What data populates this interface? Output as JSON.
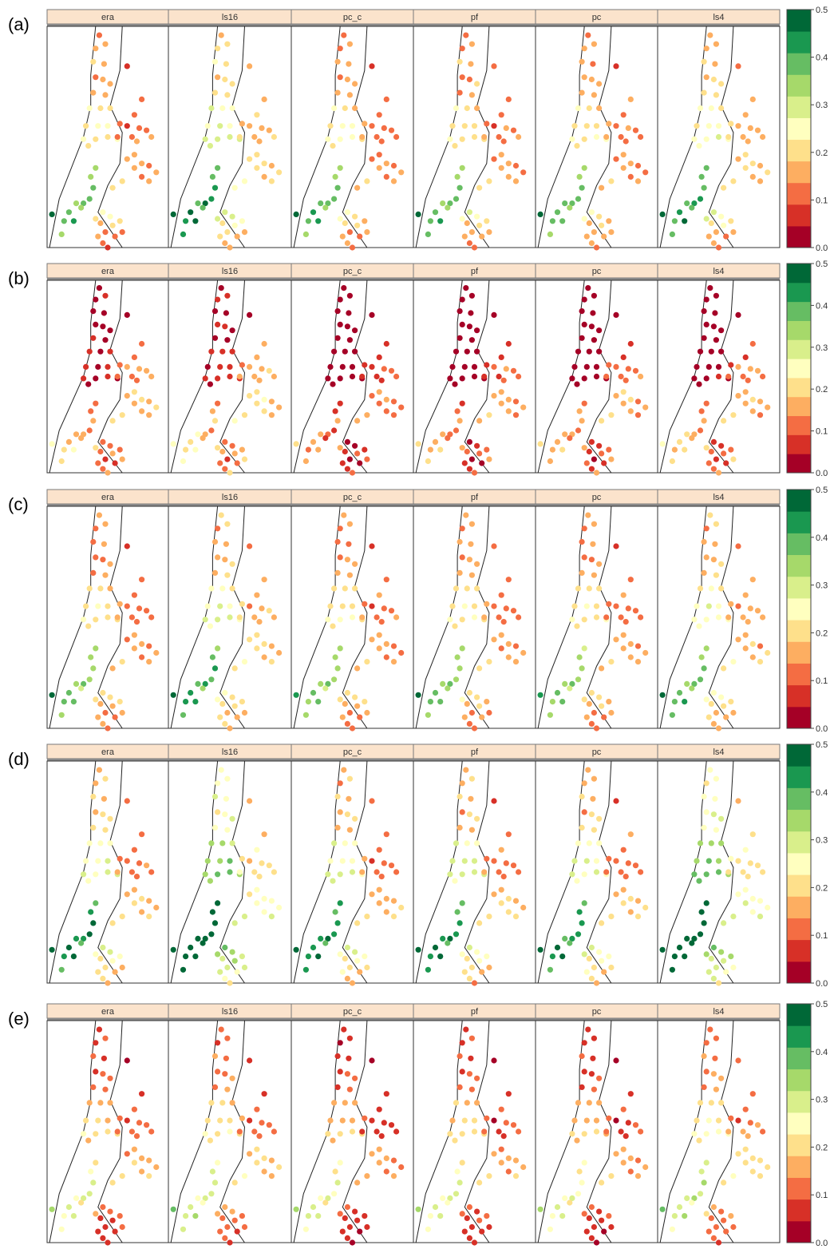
{
  "figure": {
    "panel_labels": [
      "(a)",
      "(b)",
      "(c)",
      "(d)",
      "(e)"
    ],
    "strip_titles": [
      "era",
      "ls16",
      "pc_c",
      "pf",
      "pc",
      "ls4"
    ]
  },
  "colorbar": {
    "min": 0.0,
    "max": 0.5,
    "tick_labels": [
      "0.0",
      "0.1",
      "0.2",
      "0.3",
      "0.4",
      "0.5"
    ],
    "colors": [
      "#a50026",
      "#d73027",
      "#f46d43",
      "#fdae61",
      "#fee08b",
      "#ffffbf",
      "#d9ef8b",
      "#a6d96a",
      "#66bd63",
      "#1a9850",
      "#006837"
    ]
  },
  "colors": {
    "strip_background": "#fbe3cc",
    "strip_border": "#7a7a7a",
    "panel_border": "#333333",
    "boundary_line": "#222222"
  },
  "chart_data": {
    "type": "scatter",
    "description_of_encoding": "",
    "value_range": [
      0.0,
      0.5
    ],
    "rows": [
      {
        "label": "(a)",
        "base_values": [
          0.14,
          0.13,
          0.16,
          0.18,
          0.15,
          0.08,
          0.12,
          0.15,
          0.17,
          0.14,
          0.16,
          0.22,
          0.21,
          0.19,
          0.2,
          0.23,
          0.22,
          0.24,
          0.22,
          0.23,
          0.22,
          0.21,
          0.12,
          0.13,
          0.1,
          0.14,
          0.12,
          0.13,
          0.14,
          0.11,
          0.12,
          0.13,
          0.15,
          0.14,
          0.16,
          0.12,
          0.15,
          0.14,
          0.13,
          0.16,
          0.2,
          0.18,
          0.34,
          0.36,
          0.38,
          0.38,
          0.4,
          0.36,
          0.34,
          0.4,
          0.42,
          0.38,
          0.48,
          0.36,
          0.26,
          0.22,
          0.18,
          0.2,
          0.14,
          0.12,
          0.16,
          0.13,
          0.18,
          0.1,
          0.14,
          0.24
        ],
        "panel_offsets": [
          0.0,
          0.05,
          0.0,
          0.0,
          0.0,
          0.03
        ]
      },
      {
        "label": "(b)",
        "base_values": [
          0.02,
          0.03,
          0.04,
          0.02,
          0.03,
          0.04,
          0.03,
          0.02,
          0.02,
          0.03,
          0.02,
          0.04,
          0.03,
          0.05,
          0.03,
          0.02,
          0.06,
          0.04,
          0.03,
          0.05,
          0.04,
          0.03,
          0.12,
          0.11,
          0.14,
          0.1,
          0.16,
          0.15,
          0.13,
          0.11,
          0.12,
          0.15,
          0.19,
          0.18,
          0.2,
          0.16,
          0.17,
          0.18,
          0.16,
          0.15,
          0.22,
          0.2,
          0.1,
          0.14,
          0.18,
          0.12,
          0.16,
          0.2,
          0.14,
          0.18,
          0.22,
          0.18,
          0.24,
          0.2,
          0.08,
          0.1,
          0.12,
          0.14,
          0.06,
          0.08,
          0.12,
          0.1,
          0.14,
          0.16,
          0.18,
          0.2
        ],
        "panel_offsets": [
          0.0,
          0.02,
          -0.05,
          -0.03,
          -0.02,
          -0.01
        ]
      },
      {
        "label": "(c)",
        "base_values": [
          0.14,
          0.1,
          0.16,
          0.12,
          0.14,
          0.08,
          0.12,
          0.15,
          0.17,
          0.14,
          0.16,
          0.2,
          0.21,
          0.19,
          0.2,
          0.23,
          0.22,
          0.24,
          0.22,
          0.23,
          0.22,
          0.21,
          0.12,
          0.13,
          0.1,
          0.14,
          0.12,
          0.13,
          0.14,
          0.11,
          0.12,
          0.13,
          0.15,
          0.14,
          0.16,
          0.12,
          0.15,
          0.14,
          0.13,
          0.16,
          0.2,
          0.18,
          0.32,
          0.34,
          0.36,
          0.36,
          0.38,
          0.34,
          0.32,
          0.38,
          0.4,
          0.36,
          0.44,
          0.34,
          0.22,
          0.2,
          0.16,
          0.18,
          0.14,
          0.12,
          0.16,
          0.13,
          0.18,
          0.1,
          0.14,
          0.22
        ],
        "panel_offsets": [
          0.0,
          0.04,
          0.0,
          0.0,
          0.0,
          0.03
        ]
      },
      {
        "label": "(d)",
        "base_values": [
          0.16,
          0.14,
          0.18,
          0.2,
          0.17,
          0.1,
          0.14,
          0.2,
          0.22,
          0.18,
          0.2,
          0.26,
          0.25,
          0.24,
          0.26,
          0.28,
          0.27,
          0.3,
          0.28,
          0.3,
          0.28,
          0.27,
          0.12,
          0.13,
          0.1,
          0.14,
          0.12,
          0.13,
          0.14,
          0.11,
          0.12,
          0.13,
          0.16,
          0.15,
          0.18,
          0.14,
          0.2,
          0.18,
          0.17,
          0.2,
          0.22,
          0.2,
          0.4,
          0.42,
          0.44,
          0.44,
          0.46,
          0.42,
          0.4,
          0.46,
          0.48,
          0.44,
          0.5,
          0.42,
          0.3,
          0.26,
          0.22,
          0.24,
          0.2,
          0.18,
          0.22,
          0.19,
          0.24,
          0.14,
          0.18,
          0.26
        ],
        "panel_offsets": [
          0.0,
          0.08,
          0.0,
          0.0,
          0.0,
          0.08
        ]
      },
      {
        "label": "(e)",
        "base_values": [
          0.08,
          0.06,
          0.1,
          0.12,
          0.09,
          0.05,
          0.08,
          0.12,
          0.14,
          0.1,
          0.12,
          0.18,
          0.17,
          0.16,
          0.18,
          0.2,
          0.19,
          0.22,
          0.2,
          0.21,
          0.2,
          0.19,
          0.08,
          0.1,
          0.06,
          0.11,
          0.09,
          0.1,
          0.12,
          0.09,
          0.1,
          0.11,
          0.16,
          0.15,
          0.18,
          0.14,
          0.17,
          0.16,
          0.15,
          0.18,
          0.22,
          0.2,
          0.24,
          0.26,
          0.28,
          0.28,
          0.3,
          0.26,
          0.24,
          0.3,
          0.32,
          0.28,
          0.36,
          0.26,
          0.12,
          0.1,
          0.08,
          0.09,
          0.07,
          0.06,
          0.09,
          0.08,
          0.11,
          0.06,
          0.09,
          0.14
        ],
        "panel_offsets": [
          0.0,
          0.02,
          -0.02,
          -0.01,
          -0.02,
          0.03
        ]
      }
    ]
  }
}
